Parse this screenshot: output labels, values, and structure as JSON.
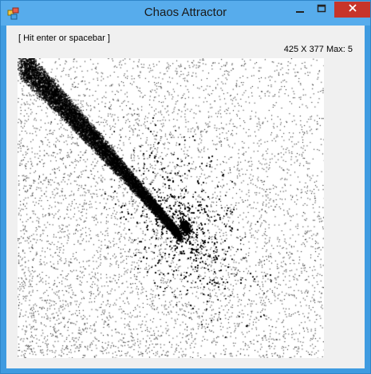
{
  "window": {
    "title": "Chaos Attractor",
    "accent_color": "#57acec",
    "close_color": "#c7352a"
  },
  "icons": {
    "app": "app-icon",
    "minimize": "minimize-icon",
    "maximize": "maximize-icon",
    "close": "close-icon"
  },
  "client": {
    "hint_text": "[ Hit enter or spacebar ]",
    "stats_text": "425 X 377 Max: 5"
  }
}
